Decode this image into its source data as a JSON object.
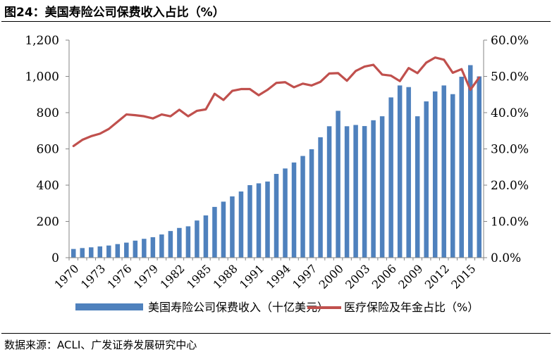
{
  "figure": {
    "title": "图24：美国寿险公司保费收入占比（%）",
    "source": "数据来源：ACLI、广发证券发展研究中心"
  },
  "colors": {
    "bar": "#4f81bd",
    "line": "#c0504d"
  },
  "chart_data": {
    "type": "bar",
    "title": "",
    "xlabel": "",
    "ylabel": "",
    "y_left_lim": [
      0,
      1200
    ],
    "y_left_ticks": [
      0,
      200,
      400,
      600,
      800,
      1000,
      1200
    ],
    "y_left_tick_labels": [
      "0",
      "200",
      "400",
      "600",
      "800",
      "1,000",
      "1,200"
    ],
    "y_right_lim": [
      0,
      60
    ],
    "y_right_ticks": [
      0,
      10,
      20,
      30,
      40,
      50,
      60
    ],
    "y_right_tick_labels": [
      "0.0%",
      "10.0%",
      "20.0%",
      "30.0%",
      "40.0%",
      "50.0%",
      "60.0%"
    ],
    "x_tick_labels": [
      "1970",
      "1973",
      "1976",
      "1979",
      "1982",
      "1985",
      "1988",
      "1991",
      "1994",
      "1997",
      "2000",
      "2003",
      "2006",
      "2009",
      "2012",
      "2015"
    ],
    "legend_position": "bottom",
    "categories": [
      1970,
      1971,
      1972,
      1973,
      1974,
      1975,
      1976,
      1977,
      1978,
      1979,
      1980,
      1981,
      1982,
      1983,
      1984,
      1985,
      1986,
      1987,
      1988,
      1989,
      1990,
      1991,
      1992,
      1993,
      1994,
      1995,
      1996,
      1997,
      1998,
      1999,
      2000,
      2001,
      2002,
      2003,
      2004,
      2005,
      2006,
      2007,
      2008,
      2009,
      2010,
      2011,
      2012,
      2013,
      2014,
      2015,
      2016
    ],
    "series": [
      {
        "name": "美国寿险公司保费收入（十亿美元）",
        "kind": "bar",
        "axis": "left",
        "values": [
          48,
          53,
          57,
          62,
          67,
          75,
          83,
          94,
          104,
          113,
          128,
          147,
          164,
          173,
          205,
          233,
          280,
          309,
          338,
          365,
          400,
          410,
          420,
          462,
          492,
          525,
          561,
          598,
          664,
          725,
          810,
          725,
          732,
          726,
          758,
          780,
          884,
          950,
          941,
          780,
          862,
          917,
          950,
          902,
          998,
          1062,
          1000
        ]
      },
      {
        "name": "医疗保险及年金占比（%）",
        "kind": "line",
        "axis": "right",
        "values": [
          30.8,
          32.5,
          33.5,
          34.2,
          35.5,
          37.5,
          39.5,
          39.3,
          39.0,
          38.4,
          39.5,
          39.0,
          40.8,
          39.0,
          40.5,
          40.9,
          45.2,
          43.5,
          46.0,
          46.5,
          46.5,
          44.8,
          46.3,
          48.2,
          48.4,
          47.0,
          48.0,
          47.5,
          48.5,
          50.8,
          50.9,
          48.8,
          51.5,
          52.7,
          53.2,
          50.5,
          50.2,
          48.7,
          52.3,
          50.9,
          53.8,
          55.2,
          54.6,
          51.0,
          52.0,
          46.3,
          49.7
        ]
      }
    ]
  }
}
